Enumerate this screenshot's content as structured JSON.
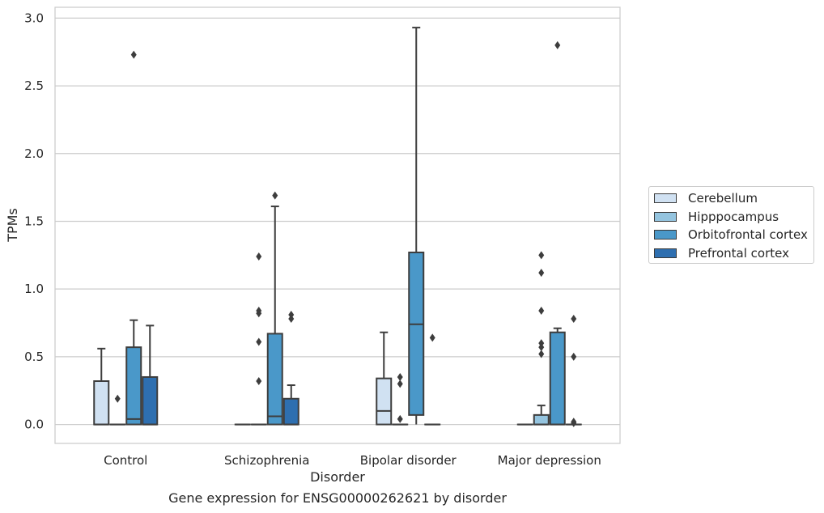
{
  "caption": "Gene expression for ENSG00000262621 by disorder",
  "chart_data": {
    "type": "box",
    "xlabel": "Disorder",
    "ylabel": "TPMs",
    "ylim": [
      -0.14,
      3.08
    ],
    "yticks": [
      0.0,
      0.5,
      1.0,
      1.5,
      2.0,
      2.5,
      3.0
    ],
    "ytick_labels": [
      "0.0",
      "0.5",
      "1.0",
      "1.5",
      "2.0",
      "2.5",
      "3.0"
    ],
    "grid": "horizontal",
    "legend_position": "right",
    "categories": [
      "Control",
      "Schizophrenia",
      "Bipolar disorder",
      "Major depression"
    ],
    "series": [
      {
        "name": "Cerebellum",
        "color": "#d0e1f2",
        "boxes": [
          {
            "min": 0.0,
            "q1": 0.0,
            "median": 0.0,
            "q3": 0.32,
            "max": 0.56,
            "outliers": []
          },
          {
            "min": 0.0,
            "q1": 0.0,
            "median": 0.0,
            "q3": 0.0,
            "max": 0.0,
            "outliers": []
          },
          {
            "min": 0.0,
            "q1": 0.0,
            "median": 0.1,
            "q3": 0.34,
            "max": 0.68,
            "outliers": []
          },
          {
            "min": 0.0,
            "q1": 0.0,
            "median": 0.0,
            "q3": 0.0,
            "max": 0.0,
            "outliers": []
          }
        ]
      },
      {
        "name": "Hipppocampus",
        "color": "#94c4df",
        "boxes": [
          {
            "min": 0.0,
            "q1": 0.0,
            "median": 0.0,
            "q3": 0.0,
            "max": 0.0,
            "outliers": [
              0.19
            ]
          },
          {
            "min": 0.0,
            "q1": 0.0,
            "median": 0.0,
            "q3": 0.0,
            "max": 0.0,
            "outliers": [
              1.24,
              0.84,
              0.82,
              0.61,
              0.32
            ]
          },
          {
            "min": 0.0,
            "q1": 0.0,
            "median": 0.0,
            "q3": 0.0,
            "max": 0.0,
            "outliers": [
              0.35,
              0.3,
              0.04
            ]
          },
          {
            "min": 0.0,
            "q1": 0.0,
            "median": 0.0,
            "q3": 0.07,
            "max": 0.14,
            "outliers": [
              1.25,
              1.12,
              0.84,
              0.6,
              0.57,
              0.52
            ]
          }
        ]
      },
      {
        "name": "Orbitofrontal cortex",
        "color": "#4a98c9",
        "boxes": [
          {
            "min": 0.0,
            "q1": 0.0,
            "median": 0.04,
            "q3": 0.57,
            "max": 0.77,
            "outliers": [
              2.73
            ]
          },
          {
            "min": 0.0,
            "q1": 0.0,
            "median": 0.06,
            "q3": 0.67,
            "max": 1.61,
            "outliers": [
              1.69
            ]
          },
          {
            "min": 0.0,
            "q1": 0.07,
            "median": 0.74,
            "q3": 1.27,
            "max": 2.93,
            "outliers": []
          },
          {
            "min": 0.0,
            "q1": 0.0,
            "median": 0.0,
            "q3": 0.68,
            "max": 0.71,
            "outliers": [
              2.8
            ]
          }
        ]
      },
      {
        "name": "Prefrontal cortex",
        "color": "#2e6fb0",
        "boxes": [
          {
            "min": 0.0,
            "q1": 0.0,
            "median": 0.0,
            "q3": 0.35,
            "max": 0.73,
            "outliers": []
          },
          {
            "min": 0.0,
            "q1": 0.0,
            "median": 0.0,
            "q3": 0.19,
            "max": 0.29,
            "outliers": [
              0.81,
              0.78
            ]
          },
          {
            "min": 0.0,
            "q1": 0.0,
            "median": 0.0,
            "q3": 0.0,
            "max": 0.0,
            "outliers": [
              0.64
            ]
          },
          {
            "min": 0.0,
            "q1": 0.0,
            "median": 0.0,
            "q3": 0.0,
            "max": 0.0,
            "outliers": [
              0.78,
              0.5,
              0.02,
              0.01
            ]
          }
        ]
      }
    ]
  }
}
